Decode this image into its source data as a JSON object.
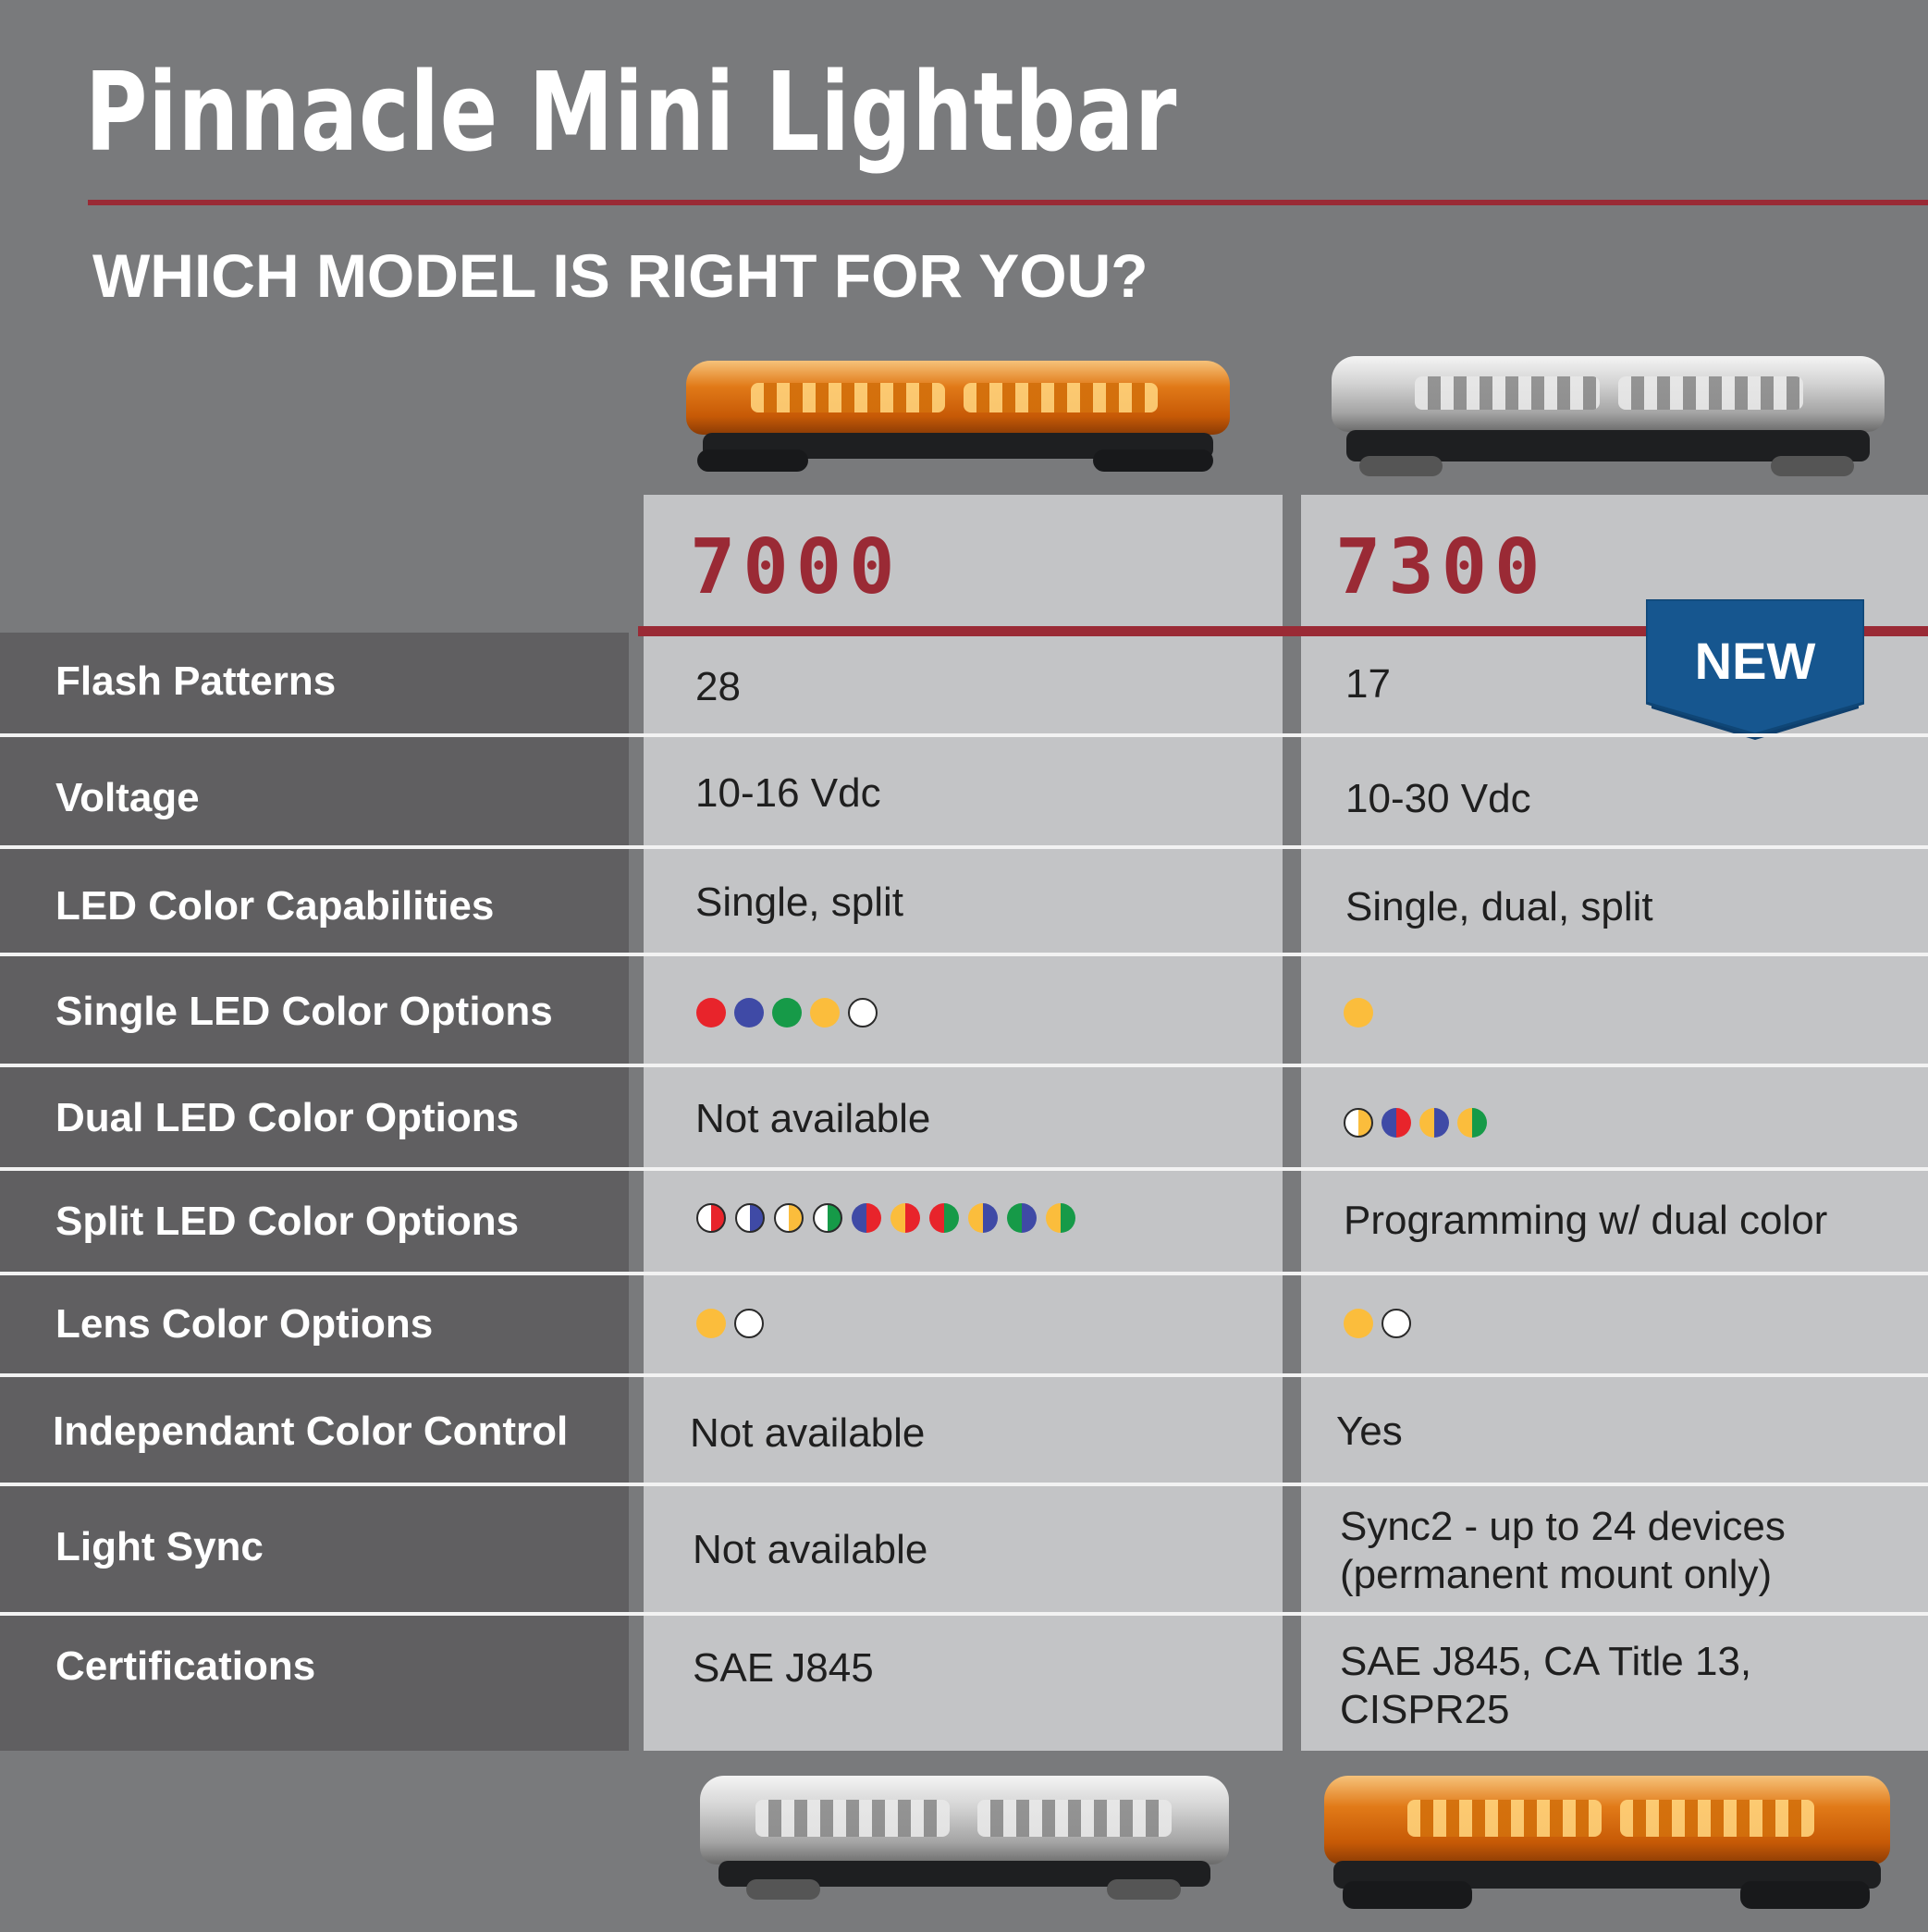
{
  "title": "Pinnacle Mini Lightbar",
  "subtitle": "WHICH MODEL IS RIGHT FOR YOU?",
  "colors": {
    "red": "#e8242b",
    "blue": "#3f4aa6",
    "green": "#169a48",
    "amber": "#fbbd3c",
    "white": "#ffffff",
    "accent": "#9a2a35",
    "badge": "#16568f"
  },
  "models": [
    {
      "name": "7000"
    },
    {
      "name": "7300",
      "badge": "NEW"
    }
  ],
  "rows": [
    {
      "label": "Flash Patterns",
      "v7000": "28",
      "v7300": "17"
    },
    {
      "label": "Voltage",
      "v7000": "10-16 Vdc",
      "v7300": "10-30 Vdc"
    },
    {
      "label": "LED Color Capabilities",
      "v7000": "Single, split",
      "v7300": "Single, dual, split"
    },
    {
      "label": "Single LED Color Options",
      "d7000": [
        [
          "red",
          "red"
        ],
        [
          "blue",
          "blue"
        ],
        [
          "green",
          "green"
        ],
        [
          "amber",
          "amber"
        ],
        [
          "white",
          "white"
        ]
      ],
      "d7300": [
        [
          "amber",
          "amber"
        ]
      ]
    },
    {
      "label": "Dual LED Color Options",
      "v7000": "Not available",
      "d7300": [
        [
          "amber",
          "white"
        ],
        [
          "red",
          "blue"
        ],
        [
          "blue",
          "amber"
        ],
        [
          "green",
          "amber"
        ]
      ]
    },
    {
      "label": "Split LED Color Options",
      "d7000": [
        [
          "red",
          "white"
        ],
        [
          "blue",
          "white"
        ],
        [
          "amber",
          "white"
        ],
        [
          "green",
          "white"
        ],
        [
          "red",
          "blue"
        ],
        [
          "red",
          "amber"
        ],
        [
          "green",
          "red"
        ],
        [
          "blue",
          "amber"
        ],
        [
          "blue",
          "green"
        ],
        [
          "green",
          "amber"
        ]
      ],
      "v7300": "Programming w/ dual color"
    },
    {
      "label": "Lens Color Options",
      "d7000": [
        [
          "amber",
          "amber"
        ],
        [
          "white",
          "white"
        ]
      ],
      "d7300": [
        [
          "amber",
          "amber"
        ],
        [
          "white",
          "white"
        ]
      ]
    },
    {
      "label": "Independant Color Control",
      "v7000": "Not available",
      "v7300": "Yes"
    },
    {
      "label": "Light Sync",
      "v7000": "Not available",
      "v7300": "Sync2 - up to 24 devices",
      "v7300b": "(permanent mount only)"
    },
    {
      "label": "Certifications",
      "v7000": "SAE J845",
      "v7300": "SAE J845, CA Title 13,",
      "v7300b": "CISPR25"
    }
  ]
}
